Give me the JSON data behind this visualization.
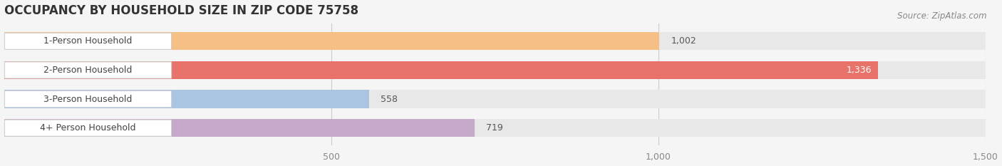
{
  "title": "OCCUPANCY BY HOUSEHOLD SIZE IN ZIP CODE 75758",
  "source": "Source: ZipAtlas.com",
  "categories": [
    "1-Person Household",
    "2-Person Household",
    "3-Person Household",
    "4+ Person Household"
  ],
  "values": [
    1002,
    1336,
    558,
    719
  ],
  "bar_colors": [
    "#f5bf85",
    "#e8736b",
    "#aac5e2",
    "#c5a8ca"
  ],
  "background_color": "#f5f5f5",
  "bar_bg_color": "#e8e8e8",
  "xlim": [
    0,
    1500
  ],
  "xticks": [
    500,
    1000,
    1500
  ],
  "bar_height": 0.62,
  "value_labels": [
    "1,002",
    "1,336",
    "558",
    "719"
  ],
  "value_label_inside": [
    false,
    true,
    false,
    false
  ],
  "title_fontsize": 12,
  "source_fontsize": 8.5,
  "label_fontsize": 9,
  "tick_fontsize": 9
}
